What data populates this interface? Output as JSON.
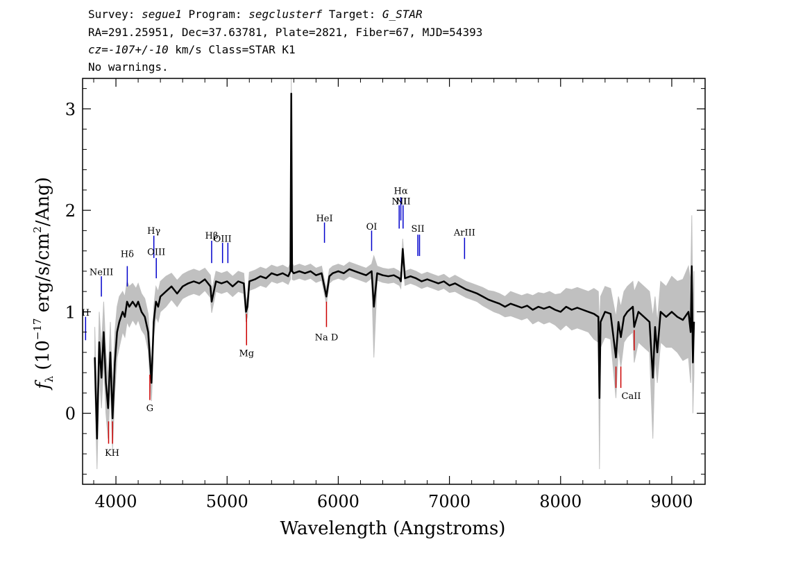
{
  "header": {
    "line1": {
      "survey_label": "Survey: ",
      "survey": "segue1",
      "program_label": " Program: ",
      "program": "segclusterf",
      "target_label": " Target: ",
      "target": "G_STAR"
    },
    "line2": "RA=291.25951, Dec=37.63781, Plate=2821, Fiber=67, MJD=54393",
    "line3": {
      "cz": "cz",
      "eq": "=",
      "value": "-107+/-10",
      "rest": " km/s Class=STAR K1"
    },
    "line4": "No warnings."
  },
  "colors": {
    "flux": "#000000",
    "error": "#c0c0c0",
    "emission": "#0000cc",
    "absorption": "#cc0000"
  },
  "chart_data": {
    "type": "line",
    "title": "",
    "xlabel": "Wavelength (Angstroms)",
    "ylabel": "f_λ (10^-17 erg/s/cm^2/Ang)",
    "ylabel_parts": {
      "f": "f",
      "lambda": "λ",
      "pre": " (10",
      "exp1": "−17",
      "mid": " erg/s/cm",
      "exp2": "2",
      "post": "/Ang)"
    },
    "xlim": [
      3700,
      9300
    ],
    "ylim": [
      -0.7,
      3.3
    ],
    "xticks": [
      4000,
      5000,
      6000,
      7000,
      8000,
      9000
    ],
    "yticks": [
      0,
      1,
      2,
      3
    ],
    "grid": false,
    "series": [
      {
        "x": [
          3810,
          3830,
          3850,
          3870,
          3890,
          3910,
          3930,
          3950,
          3970,
          3990,
          4010,
          4030,
          4060,
          4080,
          4100,
          4120,
          4150,
          4180,
          4200,
          4230,
          4260,
          4290,
          4320,
          4340,
          4360,
          4380,
          4400,
          4450,
          4500,
          4550,
          4600,
          4650,
          4700,
          4750,
          4800,
          4850,
          4861,
          4900,
          4950,
          5000,
          5050,
          5100,
          5150,
          5170,
          5183,
          5200,
          5250,
          5300,
          5350,
          5400,
          5450,
          5500,
          5550,
          5570,
          5577,
          5585,
          5600,
          5650,
          5700,
          5750,
          5800,
          5850,
          5893,
          5920,
          5950,
          6000,
          6050,
          6100,
          6150,
          6200,
          6250,
          6300,
          6320,
          6350,
          6400,
          6450,
          6500,
          6550,
          6563,
          6580,
          6600,
          6650,
          6700,
          6750,
          6800,
          6850,
          6900,
          6950,
          7000,
          7050,
          7100,
          7150,
          7200,
          7250,
          7300,
          7350,
          7400,
          7450,
          7500,
          7550,
          7600,
          7650,
          7700,
          7750,
          7800,
          7850,
          7900,
          7950,
          8000,
          8050,
          8100,
          8150,
          8200,
          8250,
          8300,
          8340,
          8350,
          8360,
          8400,
          8450,
          8498,
          8520,
          8542,
          8570,
          8600,
          8650,
          8662,
          8700,
          8750,
          8800,
          8830,
          8850,
          8870,
          8900,
          8950,
          9000,
          9050,
          9100,
          9150,
          9170,
          9180,
          9190,
          9200
        ],
        "y": [
          0.55,
          -0.25,
          0.7,
          0.35,
          0.8,
          0.3,
          0.05,
          0.6,
          -0.05,
          0.5,
          0.8,
          0.9,
          1.0,
          0.95,
          1.1,
          1.05,
          1.1,
          1.05,
          1.1,
          1.0,
          0.95,
          0.8,
          0.3,
          0.9,
          1.1,
          1.05,
          1.15,
          1.2,
          1.25,
          1.18,
          1.25,
          1.28,
          1.3,
          1.28,
          1.32,
          1.25,
          1.1,
          1.3,
          1.28,
          1.3,
          1.25,
          1.3,
          1.28,
          1.0,
          1.05,
          1.3,
          1.32,
          1.35,
          1.33,
          1.38,
          1.36,
          1.38,
          1.35,
          1.4,
          3.15,
          1.4,
          1.38,
          1.4,
          1.38,
          1.4,
          1.36,
          1.38,
          1.15,
          1.35,
          1.38,
          1.4,
          1.38,
          1.42,
          1.4,
          1.38,
          1.36,
          1.4,
          1.05,
          1.38,
          1.36,
          1.35,
          1.36,
          1.33,
          1.3,
          1.62,
          1.33,
          1.35,
          1.33,
          1.3,
          1.32,
          1.3,
          1.28,
          1.3,
          1.26,
          1.28,
          1.25,
          1.22,
          1.2,
          1.18,
          1.15,
          1.12,
          1.1,
          1.08,
          1.05,
          1.08,
          1.06,
          1.04,
          1.06,
          1.02,
          1.05,
          1.03,
          1.05,
          1.02,
          1.0,
          1.05,
          1.02,
          1.04,
          1.02,
          1.0,
          0.98,
          0.95,
          0.15,
          0.9,
          1.0,
          0.98,
          0.55,
          0.9,
          0.75,
          0.95,
          1.0,
          1.05,
          0.85,
          1.0,
          0.95,
          0.9,
          0.35,
          0.85,
          0.6,
          1.0,
          0.95,
          1.0,
          0.95,
          0.92,
          1.0,
          0.8,
          1.45,
          0.5,
          0.9
        ]
      }
    ],
    "error_band": [
      0.3,
      0.3,
      0.3,
      0.3,
      0.3,
      0.3,
      0.3,
      0.3,
      0.3,
      0.3,
      0.25,
      0.25,
      0.2,
      0.2,
      0.2,
      0.2,
      0.18,
      0.18,
      0.18,
      0.18,
      0.18,
      0.18,
      0.18,
      0.15,
      0.15,
      0.15,
      0.15,
      0.15,
      0.13,
      0.13,
      0.12,
      0.12,
      0.12,
      0.12,
      0.11,
      0.11,
      0.11,
      0.1,
      0.1,
      0.1,
      0.1,
      0.1,
      0.1,
      0.1,
      0.1,
      0.09,
      0.09,
      0.09,
      0.09,
      0.08,
      0.08,
      0.08,
      0.08,
      0.08,
      0.15,
      0.08,
      0.07,
      0.07,
      0.07,
      0.07,
      0.07,
      0.07,
      0.07,
      0.07,
      0.07,
      0.07,
      0.07,
      0.07,
      0.07,
      0.07,
      0.07,
      0.07,
      0.5,
      0.07,
      0.07,
      0.07,
      0.07,
      0.07,
      0.07,
      0.1,
      0.07,
      0.07,
      0.07,
      0.07,
      0.07,
      0.07,
      0.07,
      0.07,
      0.07,
      0.08,
      0.08,
      0.08,
      0.08,
      0.08,
      0.09,
      0.09,
      0.1,
      0.1,
      0.1,
      0.12,
      0.12,
      0.12,
      0.12,
      0.14,
      0.14,
      0.15,
      0.15,
      0.15,
      0.18,
      0.18,
      0.2,
      0.2,
      0.2,
      0.2,
      0.25,
      0.25,
      0.7,
      0.25,
      0.25,
      0.25,
      0.4,
      0.25,
      0.3,
      0.25,
      0.25,
      0.25,
      0.35,
      0.3,
      0.3,
      0.3,
      0.6,
      0.3,
      0.3,
      0.3,
      0.3,
      0.35,
      0.35,
      0.4,
      0.45,
      0.5,
      0.5,
      0.5,
      0.5
    ],
    "emission_lines": [
      {
        "label": "H",
        "x": 3727,
        "y_bottom": 0.72,
        "y_top": 0.95,
        "label_y": 0.96
      },
      {
        "label": "NeIII",
        "x": 3869,
        "y_bottom": 1.15,
        "y_top": 1.35,
        "label_y": 1.36
      },
      {
        "label": "Hδ",
        "x": 4102,
        "y_bottom": 1.25,
        "y_top": 1.45,
        "label_y": 1.54
      },
      {
        "label": "Hγ",
        "x": 4341,
        "y_bottom": 1.53,
        "y_top": 1.75,
        "label_y": 1.77
      },
      {
        "label": "OIII",
        "x": 4363,
        "y_bottom": 1.33,
        "y_top": 1.53,
        "label_y": 1.56
      },
      {
        "label": "Hβ",
        "x": 4861,
        "y_bottom": 1.48,
        "y_top": 1.7,
        "label_y": 1.72
      },
      {
        "label": "OIII",
        "x": 4959,
        "y_bottom": 1.48,
        "y_top": 1.68,
        "label_y": 1.69
      },
      {
        "label": "",
        "x": 5007,
        "y_bottom": 1.48,
        "y_top": 1.68,
        "label_y": 1.69
      },
      {
        "label": "HeI",
        "x": 5876,
        "y_bottom": 1.68,
        "y_top": 1.88,
        "label_y": 1.89
      },
      {
        "label": "OI",
        "x": 6300,
        "y_bottom": 1.6,
        "y_top": 1.8,
        "label_y": 1.81
      },
      {
        "label": "NII",
        "x": 6548,
        "y_bottom": 1.82,
        "y_top": 2.05,
        "label_y": 2.06
      },
      {
        "label": "Hα",
        "x": 6563,
        "y_bottom": 1.9,
        "y_top": 2.13,
        "label_y": 2.16
      },
      {
        "label": "NII",
        "x": 6583,
        "y_bottom": 1.82,
        "y_top": 2.05,
        "label_y": 2.06
      },
      {
        "label": "SII",
        "x": 6716,
        "y_bottom": 1.55,
        "y_top": 1.76,
        "label_y": 1.79
      },
      {
        "label": "",
        "x": 6731,
        "y_bottom": 1.55,
        "y_top": 1.76,
        "label_y": 1.79
      },
      {
        "label": "ArIII",
        "x": 7136,
        "y_bottom": 1.52,
        "y_top": 1.73,
        "label_y": 1.75
      }
    ],
    "absorption_lines": [
      {
        "label": "KH",
        "x": 3934,
        "y_top": -0.08,
        "y_bottom": -0.3,
        "label_y": -0.42
      },
      {
        "label": "",
        "x": 3969,
        "y_top": -0.08,
        "y_bottom": -0.3,
        "label_y": -0.42
      },
      {
        "label": "G",
        "x": 4305,
        "y_top": 0.38,
        "y_bottom": 0.13,
        "label_y": 0.02
      },
      {
        "label": "Mg",
        "x": 5175,
        "y_top": 0.98,
        "y_bottom": 0.67,
        "label_y": 0.56
      },
      {
        "label": "Na D",
        "x": 5894,
        "y_top": 1.1,
        "y_bottom": 0.85,
        "label_y": 0.72
      },
      {
        "label": "CaII",
        "x": 8498,
        "y_top": 0.46,
        "y_bottom": 0.25,
        "label_y": 0.14
      },
      {
        "label": "",
        "x": 8542,
        "y_top": 0.46,
        "y_bottom": 0.25,
        "label_y": 0.14
      },
      {
        "label": "",
        "x": 8662,
        "y_top": 0.82,
        "y_bottom": 0.62,
        "label_y": 0.5
      }
    ]
  }
}
